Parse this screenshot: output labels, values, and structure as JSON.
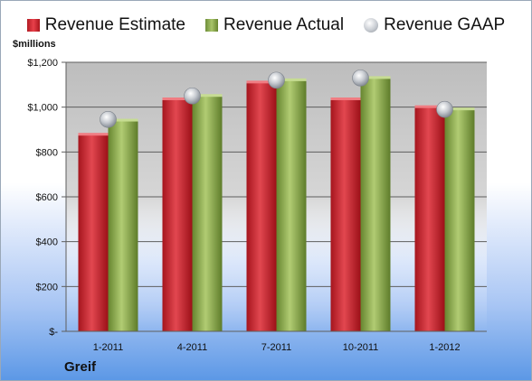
{
  "legend": {
    "estimate": "Revenue Estimate",
    "actual": "Revenue Actual",
    "gaap": "Revenue GAAP"
  },
  "unit_label": "$millions",
  "company": "Greif",
  "colors": {
    "estimate": "#d32a32",
    "actual": "#8fae55",
    "gaap": "#c4c8ce",
    "plot_background": "#c8c8c8"
  },
  "chart_data": {
    "type": "bar",
    "title": "",
    "xlabel": "",
    "ylabel": "$millions",
    "categories": [
      "1-2011",
      "4-2011",
      "7-2011",
      "10-2011",
      "1-2012"
    ],
    "series": [
      {
        "name": "Revenue Estimate",
        "type": "bar",
        "values": [
          877,
          1035,
          1110,
          1035,
          1000
        ]
      },
      {
        "name": "Revenue Actual",
        "type": "bar",
        "values": [
          940,
          1050,
          1120,
          1130,
          990
        ]
      },
      {
        "name": "Revenue GAAP",
        "type": "scatter",
        "values": [
          945,
          1050,
          1120,
          1130,
          990
        ]
      }
    ],
    "ylim": [
      0,
      1200
    ],
    "yticks": [
      0,
      200,
      400,
      600,
      800,
      1000,
      1200
    ],
    "ytick_labels": [
      "$-",
      "$200",
      "$400",
      "$600",
      "$800",
      "$1,000",
      "$1,200"
    ],
    "grid": true,
    "legend_position": "top"
  }
}
